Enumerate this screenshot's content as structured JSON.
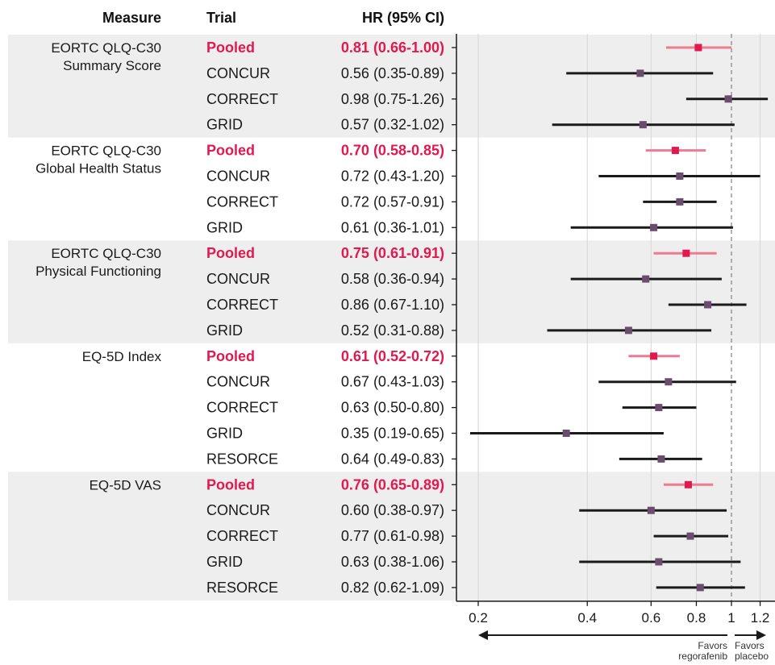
{
  "headers": {
    "measure": "Measure",
    "trial": "Trial",
    "hr": "HR (95% CI)"
  },
  "colors": {
    "pooled": "#e0194f",
    "pooled_ci": "#ef7a91",
    "trial_marker": "#6b4c6e",
    "trial_ci": "#1a1a1a",
    "band": "#eeeeee",
    "reference_line": "#888888"
  },
  "favors_left": [
    "Favors",
    "regorafenib"
  ],
  "favors_right": [
    "Favors",
    "placebo"
  ],
  "chart_data": {
    "type": "forest",
    "x_scale": "log",
    "xlim": [
      0.2,
      1.3
    ],
    "x_ticks": [
      0.2,
      0.4,
      0.6,
      0.8,
      1,
      1.2
    ],
    "x_tick_labels": [
      "0.2",
      "0.4",
      "0.6",
      "0.8",
      "1",
      "1.2"
    ],
    "reference_line": 1,
    "grid": true,
    "groups": [
      {
        "measure": [
          "EORTC QLQ-C30",
          "Summary Score"
        ],
        "shaded": true,
        "rows": [
          {
            "trial": "Pooled",
            "label": "0.81 (0.66-1.00)",
            "hr": 0.81,
            "lo": 0.66,
            "hi": 1.0,
            "pooled": true
          },
          {
            "trial": "CONCUR",
            "label": "0.56 (0.35-0.89)",
            "hr": 0.56,
            "lo": 0.35,
            "hi": 0.89
          },
          {
            "trial": "CORRECT",
            "label": "0.98 (0.75-1.26)",
            "hr": 0.98,
            "lo": 0.75,
            "hi": 1.26
          },
          {
            "trial": "GRID",
            "label": "0.57 (0.32-1.02)",
            "hr": 0.57,
            "lo": 0.32,
            "hi": 1.02
          }
        ]
      },
      {
        "measure": [
          "EORTC QLQ-C30",
          "Global Health Status"
        ],
        "shaded": false,
        "rows": [
          {
            "trial": "Pooled",
            "label": "0.70 (0.58-0.85)",
            "hr": 0.7,
            "lo": 0.58,
            "hi": 0.85,
            "pooled": true
          },
          {
            "trial": "CONCUR",
            "label": "0.72 (0.43-1.20)",
            "hr": 0.72,
            "lo": 0.43,
            "hi": 1.2
          },
          {
            "trial": "CORRECT",
            "label": "0.72 (0.57-0.91)",
            "hr": 0.72,
            "lo": 0.57,
            "hi": 0.91
          },
          {
            "trial": "GRID",
            "label": "0.61 (0.36-1.01)",
            "hr": 0.61,
            "lo": 0.36,
            "hi": 1.01
          }
        ]
      },
      {
        "measure": [
          "EORTC QLQ-C30",
          "Physical Functioning"
        ],
        "shaded": true,
        "rows": [
          {
            "trial": "Pooled",
            "label": "0.75 (0.61-0.91)",
            "hr": 0.75,
            "lo": 0.61,
            "hi": 0.91,
            "pooled": true
          },
          {
            "trial": "CONCUR",
            "label": "0.58 (0.36-0.94)",
            "hr": 0.58,
            "lo": 0.36,
            "hi": 0.94
          },
          {
            "trial": "CORRECT",
            "label": "0.86 (0.67-1.10)",
            "hr": 0.86,
            "lo": 0.67,
            "hi": 1.1
          },
          {
            "trial": "GRID",
            "label": "0.52 (0.31-0.88)",
            "hr": 0.52,
            "lo": 0.31,
            "hi": 0.88
          }
        ]
      },
      {
        "measure": [
          "EQ-5D Index"
        ],
        "shaded": false,
        "rows": [
          {
            "trial": "Pooled",
            "label": "0.61 (0.52-0.72)",
            "hr": 0.61,
            "lo": 0.52,
            "hi": 0.72,
            "pooled": true
          },
          {
            "trial": "CONCUR",
            "label": "0.67 (0.43-1.03)",
            "hr": 0.67,
            "lo": 0.43,
            "hi": 1.03
          },
          {
            "trial": "CORRECT",
            "label": "0.63 (0.50-0.80)",
            "hr": 0.63,
            "lo": 0.5,
            "hi": 0.8
          },
          {
            "trial": "GRID",
            "label": "0.35 (0.19-0.65)",
            "hr": 0.35,
            "lo": 0.19,
            "hi": 0.65
          },
          {
            "trial": "RESORCE",
            "label": "0.64 (0.49-0.83)",
            "hr": 0.64,
            "lo": 0.49,
            "hi": 0.83
          }
        ]
      },
      {
        "measure": [
          "EQ-5D VAS"
        ],
        "shaded": true,
        "rows": [
          {
            "trial": "Pooled",
            "label": "0.76 (0.65-0.89)",
            "hr": 0.76,
            "lo": 0.65,
            "hi": 0.89,
            "pooled": true
          },
          {
            "trial": "CONCUR",
            "label": "0.60 (0.38-0.97)",
            "hr": 0.6,
            "lo": 0.38,
            "hi": 0.97
          },
          {
            "trial": "CORRECT",
            "label": "0.77 (0.61-0.98)",
            "hr": 0.77,
            "lo": 0.61,
            "hi": 0.98
          },
          {
            "trial": "GRID",
            "label": "0.63 (0.38-1.06)",
            "hr": 0.63,
            "lo": 0.38,
            "hi": 1.06
          },
          {
            "trial": "RESORCE",
            "label": "0.82 (0.62-1.09)",
            "hr": 0.82,
            "lo": 0.62,
            "hi": 1.09
          }
        ]
      }
    ]
  }
}
